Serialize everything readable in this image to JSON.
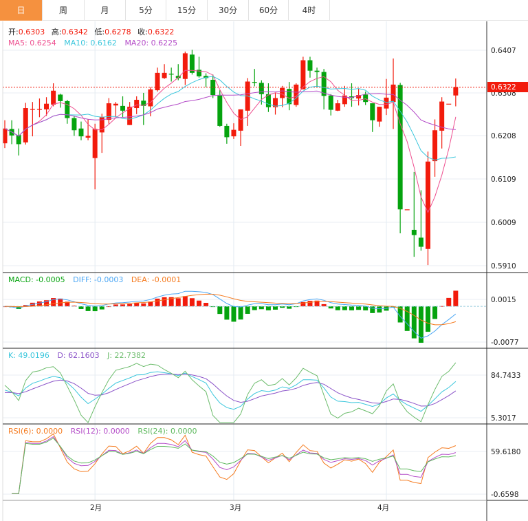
{
  "tabs": [
    {
      "label": "日",
      "active": true
    },
    {
      "label": "周"
    },
    {
      "label": "月"
    },
    {
      "label": "5分"
    },
    {
      "label": "15分"
    },
    {
      "label": "30分"
    },
    {
      "label": "60分"
    },
    {
      "label": "4时"
    }
  ],
  "ohlc_legend": {
    "open_label": "开:",
    "open": "0.6303",
    "high_label": "高:",
    "high": "0.6342",
    "low_label": "低:",
    "low": "0.6278",
    "close_label": "收:",
    "close": "0.6322"
  },
  "ma_legend": {
    "ma5": "MA5: 0.6254",
    "ma10": "MA10: 0.6162",
    "ma20": "MA20: 0.6225"
  },
  "macd_legend": {
    "macd": "MACD: -0.0005",
    "diff": "DIFF: -0.0003",
    "dea": "DEA: -0.0001"
  },
  "kdj_legend": {
    "k": "K: 49.0196",
    "d": "D: 62.1603",
    "j": "J: 22.7382"
  },
  "rsi_legend": {
    "rsi6": "RSI(6): 0.0000",
    "rsi12": "RSI(12): 0.0000",
    "rsi24": "RSI(24): 0.0000"
  },
  "price_axis": [
    "0.6407",
    "0.6308",
    "0.6208",
    "0.6109",
    "0.6009",
    "0.5910"
  ],
  "current_price": "0.6322",
  "macd_axis": [
    "0.0015",
    "-0.0077"
  ],
  "kdj_axis": [
    "84.7433",
    "5.3017"
  ],
  "rsi_axis": [
    "59.6180",
    "-0.6598"
  ],
  "date_axis": [
    "2月",
    "3月",
    "4月"
  ],
  "colors": {
    "up": "#f21b0c",
    "down": "#05a30e",
    "active_tab": "#f5913f",
    "ma5": "#ee4f8f",
    "ma10": "#3ac6dc",
    "ma20": "#b44cc8",
    "diff": "#4aa6f4",
    "dea": "#f57a1e",
    "k": "#3ac6dc",
    "d": "#8a52c8",
    "j": "#6cbc6c",
    "rsi6": "#f57a1e",
    "rsi12": "#b44cc8",
    "rsi24": "#5cb85c"
  },
  "chart_data": {
    "type": "candlestick",
    "fields": [
      "open",
      "high",
      "low",
      "close"
    ],
    "price_range": [
      0.591,
      0.6407
    ],
    "candles": [
      [
        0.6193,
        0.6246,
        0.6182,
        0.6227
      ],
      [
        0.6226,
        0.6246,
        0.6191,
        0.6211
      ],
      [
        0.6212,
        0.6227,
        0.6165,
        0.6191
      ],
      [
        0.6195,
        0.6286,
        0.619,
        0.6274
      ],
      [
        0.627,
        0.6288,
        0.6209,
        0.6272
      ],
      [
        0.627,
        0.6296,
        0.6253,
        0.6272
      ],
      [
        0.6271,
        0.6299,
        0.6256,
        0.6284
      ],
      [
        0.6282,
        0.6331,
        0.6278,
        0.6314
      ],
      [
        0.6305,
        0.6307,
        0.6275,
        0.629
      ],
      [
        0.629,
        0.6293,
        0.6238,
        0.6251
      ],
      [
        0.6251,
        0.6256,
        0.621,
        0.6223
      ],
      [
        0.6227,
        0.6243,
        0.62,
        0.6209
      ],
      [
        0.6206,
        0.6248,
        0.62,
        0.621
      ],
      [
        0.6159,
        0.6238,
        0.6087,
        0.6226
      ],
      [
        0.6218,
        0.6261,
        0.6171,
        0.6253
      ],
      [
        0.6247,
        0.6297,
        0.6238,
        0.6285
      ],
      [
        0.628,
        0.6288,
        0.6253,
        0.6284
      ],
      [
        0.6279,
        0.6301,
        0.6253,
        0.6268
      ],
      [
        0.6235,
        0.6288,
        0.6235,
        0.6277
      ],
      [
        0.6274,
        0.6301,
        0.626,
        0.6293
      ],
      [
        0.6291,
        0.6309,
        0.6235,
        0.6279
      ],
      [
        0.6278,
        0.6322,
        0.6255,
        0.6317
      ],
      [
        0.6315,
        0.6367,
        0.6312,
        0.6355
      ],
      [
        0.6343,
        0.6375,
        0.6341,
        0.6355
      ],
      [
        0.6353,
        0.6367,
        0.6335,
        0.6351
      ],
      [
        0.6348,
        0.6375,
        0.6338,
        0.6343
      ],
      [
        0.6341,
        0.6404,
        0.6327,
        0.64
      ],
      [
        0.6397,
        0.6408,
        0.6351,
        0.6355
      ],
      [
        0.6362,
        0.6392,
        0.6344,
        0.6347
      ],
      [
        0.6348,
        0.6354,
        0.6322,
        0.6343
      ],
      [
        0.6339,
        0.6351,
        0.6297,
        0.6304
      ],
      [
        0.6303,
        0.6315,
        0.6231,
        0.6233
      ],
      [
        0.6233,
        0.6238,
        0.6192,
        0.6207
      ],
      [
        0.6209,
        0.6239,
        0.6203,
        0.6224
      ],
      [
        0.6222,
        0.6271,
        0.6187,
        0.6271
      ],
      [
        0.6268,
        0.6343,
        0.6233,
        0.6335
      ],
      [
        0.6334,
        0.6364,
        0.6324,
        0.6332
      ],
      [
        0.6332,
        0.6338,
        0.6282,
        0.6306
      ],
      [
        0.6306,
        0.6331,
        0.6265,
        0.6276
      ],
      [
        0.6276,
        0.631,
        0.6259,
        0.6297
      ],
      [
        0.6297,
        0.6325,
        0.6276,
        0.632
      ],
      [
        0.6318,
        0.6334,
        0.6269,
        0.6283
      ],
      [
        0.6281,
        0.6331,
        0.6277,
        0.6328
      ],
      [
        0.6317,
        0.6392,
        0.6317,
        0.6384
      ],
      [
        0.6384,
        0.6392,
        0.6344,
        0.636
      ],
      [
        0.636,
        0.6367,
        0.6322,
        0.6357
      ],
      [
        0.6357,
        0.6364,
        0.6271,
        0.6302
      ],
      [
        0.6303,
        0.6306,
        0.6257,
        0.627
      ],
      [
        0.6268,
        0.6293,
        0.6267,
        0.6285
      ],
      [
        0.6283,
        0.6325,
        0.6277,
        0.6303
      ],
      [
        0.6301,
        0.6331,
        0.6277,
        0.6297
      ],
      [
        0.6296,
        0.6319,
        0.628,
        0.6304
      ],
      [
        0.6305,
        0.6312,
        0.6281,
        0.6288
      ],
      [
        0.6285,
        0.6285,
        0.6219,
        0.6246
      ],
      [
        0.6243,
        0.6277,
        0.6231,
        0.6277
      ],
      [
        0.6273,
        0.6341,
        0.6258,
        0.6298
      ],
      [
        0.6288,
        0.6388,
        0.6226,
        0.6328
      ],
      [
        0.6327,
        0.6332,
        0.5986,
        0.6041
      ],
      [
        0.6041,
        0.6041,
        0.6041,
        0.6041
      ],
      [
        0.5994,
        0.6127,
        0.5932,
        0.5982
      ],
      [
        0.5976,
        0.6085,
        0.5946,
        0.5955
      ],
      [
        0.595,
        0.6174,
        0.5913,
        0.6151
      ],
      [
        0.6152,
        0.6248,
        0.6116,
        0.6223
      ],
      [
        0.6222,
        0.6299,
        0.6181,
        0.6289
      ],
      [
        0.6284,
        0.6284,
        0.6284,
        0.6284
      ],
      [
        0.6303,
        0.6342,
        0.6278,
        0.6322
      ]
    ],
    "month_starts": {
      "2月": 13,
      "3月": 33,
      "4月": 55
    }
  }
}
